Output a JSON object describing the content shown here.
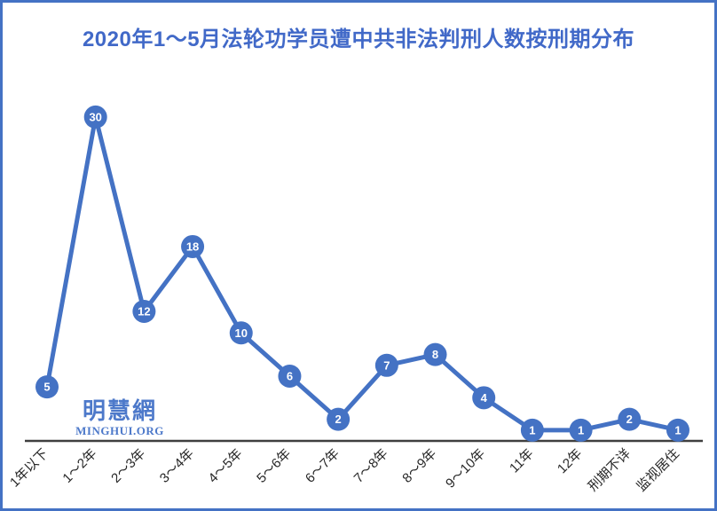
{
  "frame": {
    "background": "#ffffff",
    "border_color": "#4472c4"
  },
  "title": "2020年1～5月法轮功学员遭中共非法判刑人数按刑期分布",
  "title_color": "#4169c8",
  "watermark": {
    "line1": "明慧網",
    "line2": "MINGHUI.ORG",
    "color": "#4d79ca"
  },
  "chart_data": {
    "type": "line",
    "title": "2020年1～5月法轮功学员遭中共非法判刑人数按刑期分布",
    "categories": [
      "1年以下",
      "1～2年",
      "2～3年",
      "3～4年",
      "4～5年",
      "5～6年",
      "6～7年",
      "7～8年",
      "8～9年",
      "9～10年",
      "11年",
      "12年",
      "刑期不详",
      "监视居住"
    ],
    "values": [
      5,
      30,
      12,
      18,
      10,
      6,
      2,
      7,
      8,
      4,
      1,
      1,
      2,
      1
    ],
    "xlabel": "",
    "ylabel": "",
    "ylim": [
      0,
      30
    ],
    "grid": false,
    "legend": false,
    "data_labels": "inside-marker",
    "series_color": "#4472c4",
    "marker_text_color": "#ffffff",
    "axis_color": "#3f3f3f",
    "tick_label_color": "#262626"
  }
}
